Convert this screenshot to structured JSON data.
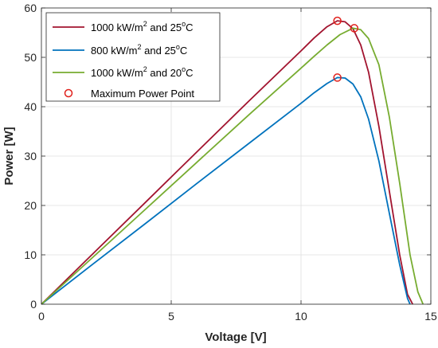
{
  "chart_data": {
    "type": "line",
    "xlabel": "Voltage [V]",
    "ylabel": "Power [W]",
    "xlim": [
      0,
      15
    ],
    "ylim": [
      0,
      60
    ],
    "xticks": [
      0,
      5,
      10,
      15
    ],
    "yticks": [
      0,
      10,
      20,
      30,
      40,
      50,
      60
    ],
    "grid": true,
    "legend_position": "top-left",
    "series": [
      {
        "name": "1000 kW/m2 and 25oC",
        "legend": {
          "pre": "1000 kW/m",
          "sup1": "2",
          "mid": " and 25",
          "sup2": "o",
          "post": "C"
        },
        "color": "#a2142f",
        "x": [
          0,
          2,
          4,
          6,
          8,
          10,
          10.5,
          11,
          11.4,
          11.7,
          12.0,
          12.3,
          12.6,
          13.0,
          13.4,
          13.8,
          14.1,
          14.3
        ],
        "y": [
          0,
          10.3,
          20.6,
          30.9,
          41.2,
          51.3,
          53.9,
          56.2,
          57.4,
          57.2,
          55.8,
          52.5,
          47.0,
          36.0,
          23.0,
          10.0,
          2.0,
          0
        ]
      },
      {
        "name": "800 kW/m2 and 25oC",
        "legend": {
          "pre": "800 kW/m",
          "sup1": "2",
          "mid": " and 25",
          "sup2": "o",
          "post": "C"
        },
        "color": "#0072bd",
        "x": [
          0,
          2,
          4,
          6,
          8,
          10,
          10.5,
          11,
          11.4,
          11.7,
          12.0,
          12.3,
          12.6,
          13.0,
          13.4,
          13.8,
          14.1,
          14.2
        ],
        "y": [
          0,
          8.2,
          16.3,
          24.5,
          32.6,
          40.7,
          42.8,
          44.7,
          45.9,
          45.8,
          44.6,
          42.0,
          37.5,
          29.0,
          18.5,
          8.0,
          1.2,
          0
        ]
      },
      {
        "name": "1000 kW/m2 and 20oC",
        "legend": {
          "pre": "1000 kW/m",
          "sup1": "2",
          "mid": " and 20",
          "sup2": "o",
          "post": "C"
        },
        "color": "#77ac30",
        "x": [
          0,
          2,
          4,
          6,
          8,
          10,
          10.5,
          11,
          11.5,
          12.0,
          12.3,
          12.6,
          13.0,
          13.4,
          13.8,
          14.2,
          14.5,
          14.7
        ],
        "y": [
          0,
          9.6,
          19.2,
          28.8,
          38.4,
          47.8,
          50.2,
          52.5,
          54.6,
          55.9,
          55.6,
          53.8,
          48.5,
          38.0,
          24.5,
          10.0,
          2.5,
          0
        ]
      }
    ],
    "markers": {
      "name": "Maximum Power Point",
      "color": "#e0201b",
      "points": [
        {
          "x": 11.4,
          "y": 57.4
        },
        {
          "x": 11.4,
          "y": 45.9
        },
        {
          "x": 12.05,
          "y": 55.9
        }
      ]
    }
  }
}
